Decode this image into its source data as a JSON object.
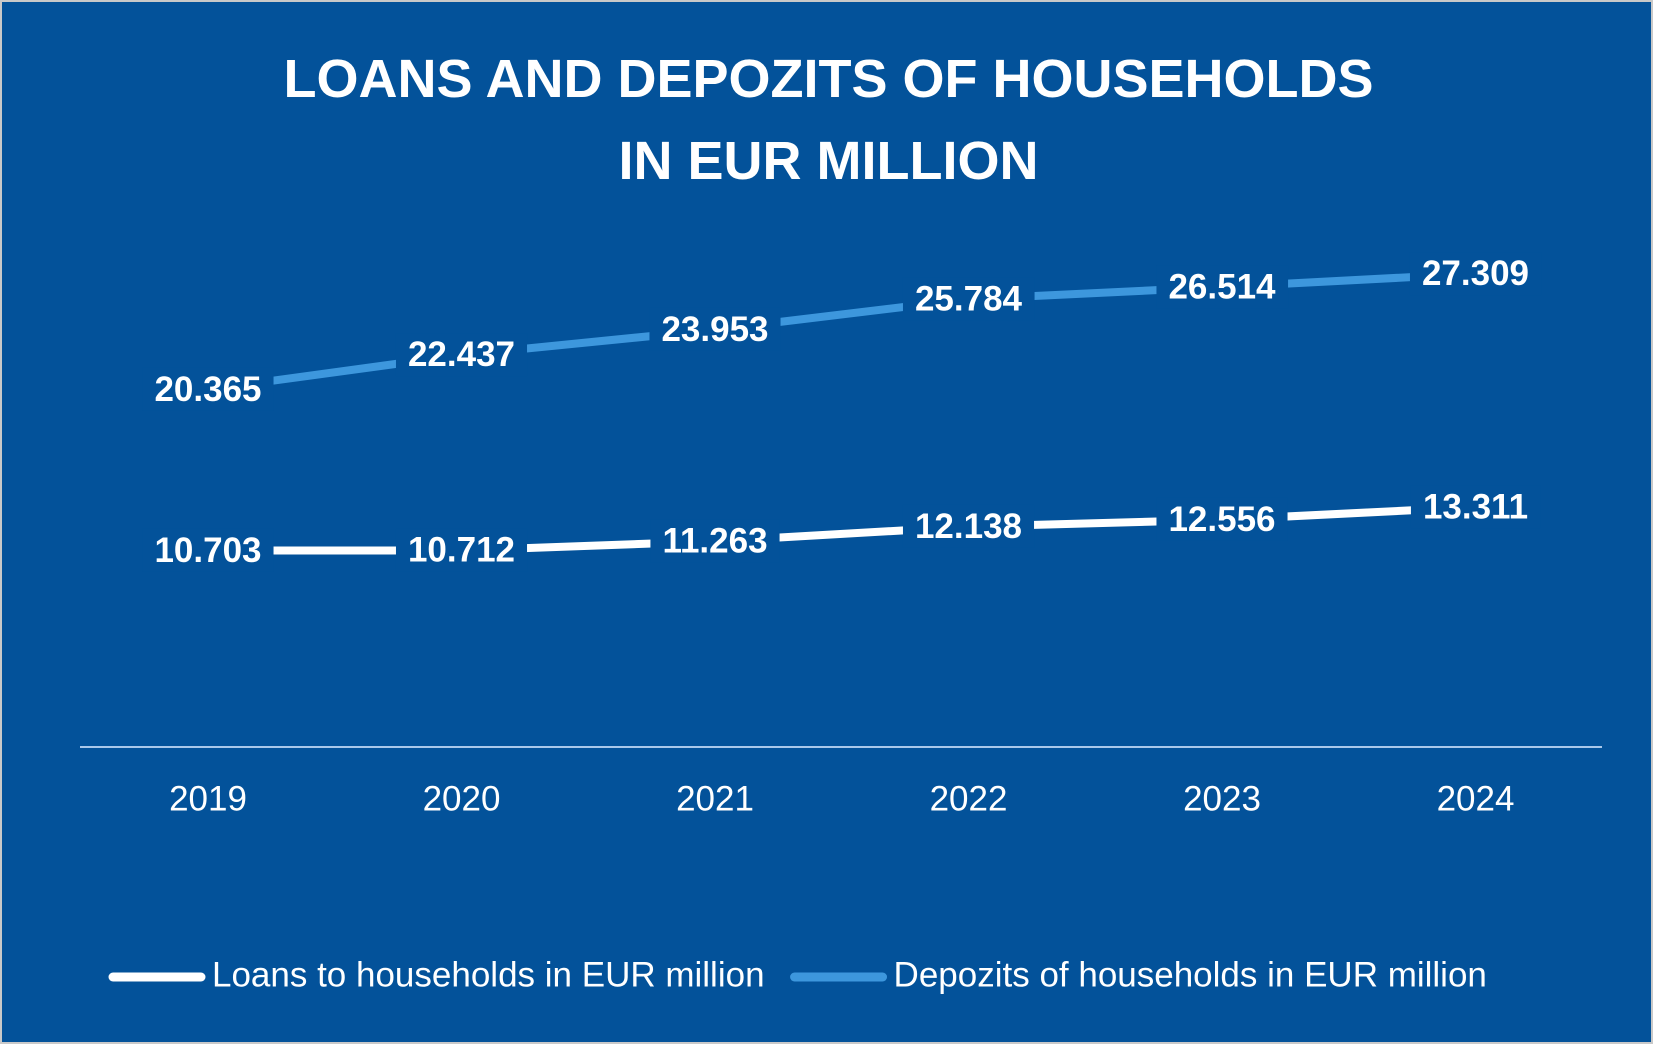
{
  "chart_data": {
    "type": "line",
    "title": "LOANS AND DEPOZITS OF HOUSEHOLDS\nIN EUR MILLION",
    "categories": [
      "2019",
      "2020",
      "2021",
      "2022",
      "2023",
      "2024"
    ],
    "series": [
      {
        "name": "Loans to households in EUR million",
        "color": "#ffffff",
        "values": [
          10703,
          10712,
          11263,
          12138,
          12556,
          13311
        ],
        "value_labels": [
          "10.703",
          "10.712",
          "11.263",
          "12.138",
          "12.556",
          "13.311"
        ]
      },
      {
        "name": "Depozits of households in EUR million",
        "color": "#3d97dd",
        "values": [
          20365,
          22437,
          23953,
          25784,
          26514,
          27309
        ],
        "value_labels": [
          "20.365",
          "22.437",
          "23.953",
          "25.784",
          "26.514",
          "27.309"
        ]
      }
    ],
    "legend": "bottom"
  }
}
